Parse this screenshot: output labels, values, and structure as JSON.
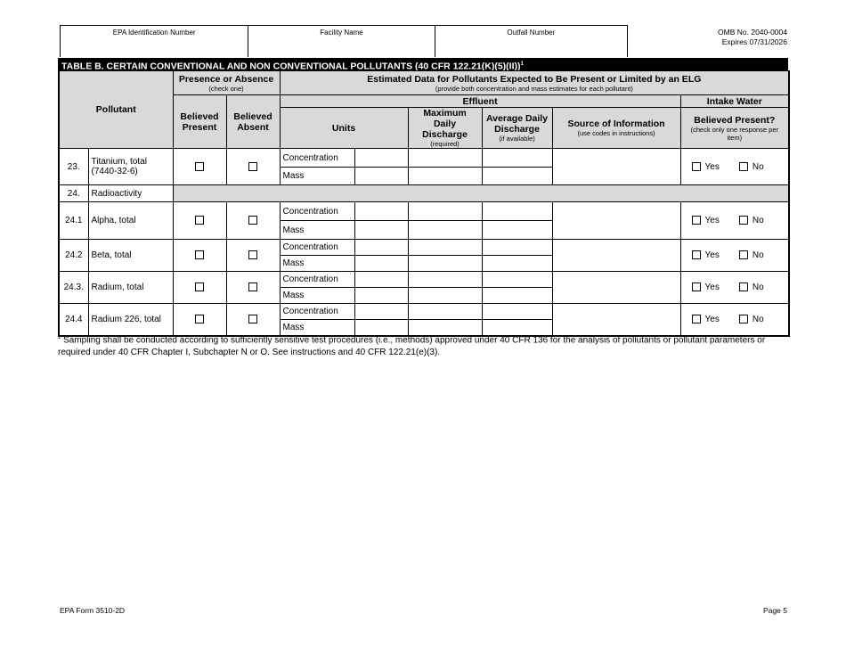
{
  "header": {
    "epa_id_label": "EPA Identification Number",
    "facility_label": "Facility Name",
    "outfall_label": "Outfall Number",
    "omb": "OMB No. 2040-0004",
    "expires": "Expires 07/31/2026"
  },
  "table": {
    "title": "TABLE B. CERTAIN CONVENTIONAL AND NON CONVENTIONAL POLLUTANTS (40 CFR 122.21(K)(5)(II))",
    "title_sup": "1",
    "col": {
      "pollutant": "Pollutant",
      "presence": "Presence or Absence",
      "presence_note": "(check one)",
      "estimated": "Estimated Data for Pollutants Expected to Be Present or Limited by an ELG",
      "estimated_note": "(provide both concentration and mass estimates for each pollutant)",
      "effluent": "Effluent",
      "intake": "Intake Water",
      "present": "Believed Present",
      "absent": "Believed Absent",
      "units": "Units",
      "max": "Maximum Daily Discharge",
      "max_note": "(required)",
      "avg": "Average Daily Discharge",
      "avg_note": "(if available)",
      "source": "Source of Information",
      "source_note": "(use codes in instructions)",
      "believed": "Believed Present?",
      "believed_note": "(check only one response per item)"
    },
    "concentration": "Concentration",
    "mass": "Mass",
    "yes": "Yes",
    "no": "No",
    "rows": [
      {
        "num": "23.",
        "name": "Titanium, total (7440-32-6)"
      },
      {
        "num": "24.",
        "name": "Radioactivity",
        "section": true
      },
      {
        "num": "24.1",
        "name": "Alpha, total"
      },
      {
        "num": "24.2",
        "name": "Beta, total"
      },
      {
        "num": "24.3.",
        "name": "Radium, total"
      },
      {
        "num": "24.4",
        "name": "Radium 226, total"
      }
    ]
  },
  "footnote": {
    "sup": "1",
    "text": "Sampling shall be conducted according to sufficiently sensitive test procedures (i.e., methods) approved under 40 CFR 136 for the analysis of pollutants or pollutant parameters or required under 40 CFR Chapter I, Subchapter N or O. See instructions and 40 CFR 122.21(e)(3)."
  },
  "footer": {
    "form": "EPA Form 3510-2D",
    "page": "Page 5"
  }
}
